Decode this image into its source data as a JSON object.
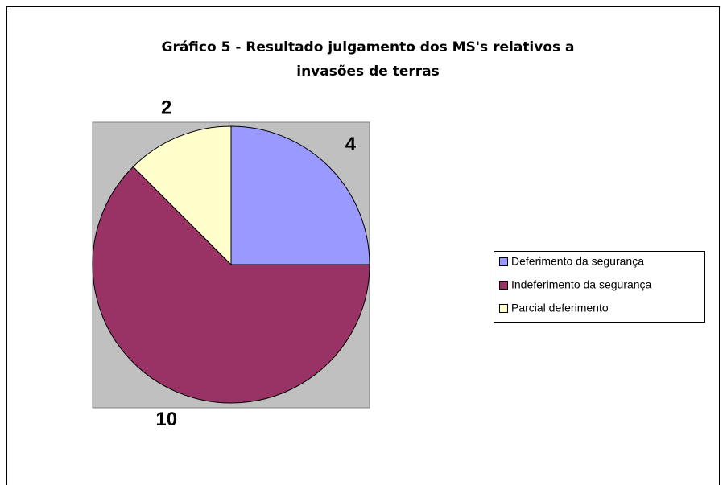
{
  "chart_data": {
    "type": "pie",
    "title": "Gráfico 5 - Resultado julgamento dos MS's relativos a invasões de terras",
    "categories": [
      "Deferimento da segurança",
      "Indeferimento da segurança",
      "Parcial deferimento"
    ],
    "values": [
      4,
      10,
      2
    ],
    "colors": [
      "#9999ff",
      "#993366",
      "#ffffcc"
    ],
    "legend": "right"
  }
}
